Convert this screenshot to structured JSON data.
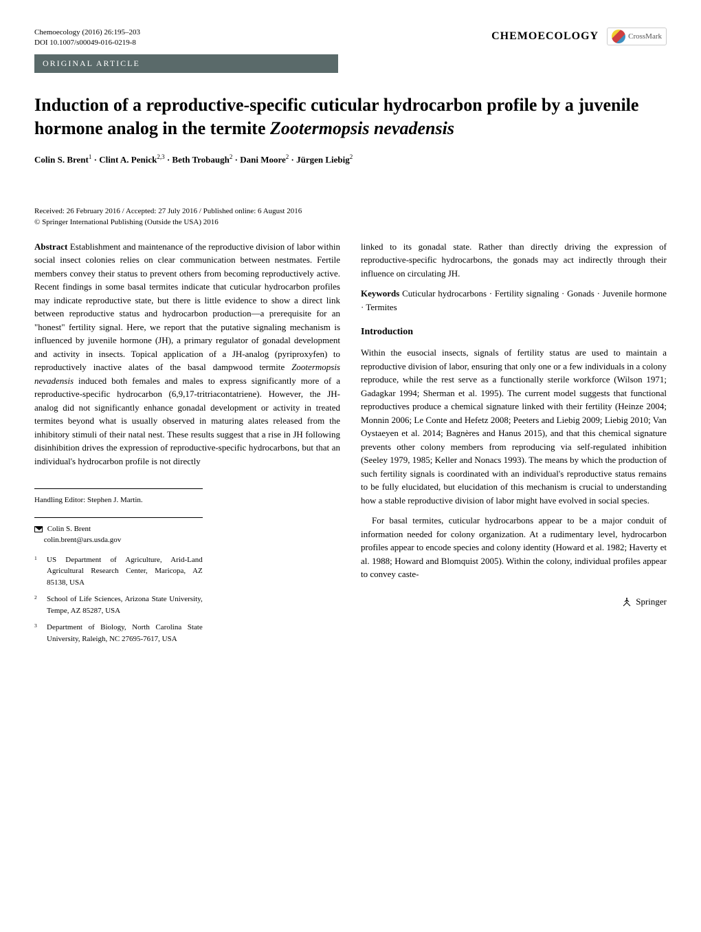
{
  "header": {
    "journal_citation": "Chemoecology (2016) 26:195–203",
    "doi": "DOI 10.1007/s00049-016-0219-8",
    "journal_name": "CHEMOECOLOGY",
    "crossmark": "CrossMark"
  },
  "article_type": "ORIGINAL ARTICLE",
  "title_html": "Induction of a reproductive-specific cuticular hydrocarbon profile by a juvenile hormone analog in the termite <em>Zootermopsis nevadensis</em>",
  "authors_html": "Colin S. Brent<sup>1</sup> · Clint A. Penick<sup>2,3</sup> · Beth Trobaugh<sup>2</sup> · Dani Moore<sup>2</sup> · Jürgen Liebig<sup>2</sup>",
  "dates": "Received: 26 February 2016 / Accepted: 27 July 2016 / Published online: 6 August 2016",
  "copyright": "© Springer International Publishing (Outside the USA) 2016",
  "abstract": {
    "label": "Abstract",
    "text_html": "Establishment and maintenance of the reproductive division of labor within social insect colonies relies on clear communication between nestmates. Fertile members convey their status to prevent others from becoming reproductively active. Recent findings in some basal termites indicate that cuticular hydrocarbon profiles may indicate reproductive state, but there is little evidence to show a direct link between reproductive status and hydrocarbon production—a prerequisite for an \"honest\" fertility signal. Here, we report that the putative signaling mechanism is influenced by juvenile hormone (JH), a primary regulator of gonadal development and activity in insects. Topical application of a JH-analog (pyriproxyfen) to reproductively inactive alates of the basal dampwood termite <em>Zootermopsis nevadensis</em> induced both females and males to express significantly more of a reproductive-specific hydrocarbon (6,9,17-tritriacontatriene). However, the JH-analog did not significantly enhance gonadal development or activity in treated termites beyond what is usually observed in maturing alates released from the inhibitory stimuli of their natal nest. These results suggest that a rise in JH following disinhibition drives the expression of reproductive-specific hydrocarbons, but that an individual's hydrocarbon profile is not directly"
  },
  "abstract_continuation": "linked to its gonadal state. Rather than directly driving the expression of reproductive-specific hydrocarbons, the gonads may act indirectly through their influence on circulating JH.",
  "keywords": {
    "label": "Keywords",
    "text": "Cuticular hydrocarbons · Fertility signaling · Gonads · Juvenile hormone · Termites"
  },
  "introduction": {
    "heading": "Introduction",
    "para1": "Within the eusocial insects, signals of fertility status are used to maintain a reproductive division of labor, ensuring that only one or a few individuals in a colony reproduce, while the rest serve as a functionally sterile workforce (Wilson 1971; Gadagkar 1994; Sherman et al. 1995). The current model suggests that functional reproductives produce a chemical signature linked with their fertility (Heinze 2004; Monnin 2006; Le Conte and Hefetz 2008; Peeters and Liebig 2009; Liebig 2010; Van Oystaeyen et al. 2014; Bagnères and Hanus 2015), and that this chemical signature prevents other colony members from reproducing via self-regulated inhibition (Seeley 1979, 1985; Keller and Nonacs 1993). The means by which the production of such fertility signals is coordinated with an individual's reproductive status remains to be fully elucidated, but elucidation of this mechanism is crucial to understanding how a stable reproductive division of labor might have evolved in social species.",
    "para2": "For basal termites, cuticular hydrocarbons appear to be a major conduit of information needed for colony organization. At a rudimentary level, hydrocarbon profiles appear to encode species and colony identity (Howard et al. 1982; Haverty et al. 1988; Howard and Blomquist 2005). Within the colony, individual profiles appear to convey caste-"
  },
  "footer": {
    "handling_editor": "Handling Editor: Stephen J. Martin.",
    "corresponding_author": "Colin S. Brent",
    "corresponding_email": "colin.brent@ars.usda.gov",
    "affiliations": [
      {
        "num": "1",
        "text": "US Department of Agriculture, Arid-Land Agricultural Research Center, Maricopa, AZ 85138, USA"
      },
      {
        "num": "2",
        "text": "School of Life Sciences, Arizona State University, Tempe, AZ 85287, USA"
      },
      {
        "num": "3",
        "text": "Department of Biology, North Carolina State University, Raleigh, NC 27695-7617, USA"
      }
    ],
    "publisher": "Springer"
  },
  "colors": {
    "article_type_bg": "#5a6a6a",
    "text": "#000000",
    "background": "#ffffff"
  }
}
